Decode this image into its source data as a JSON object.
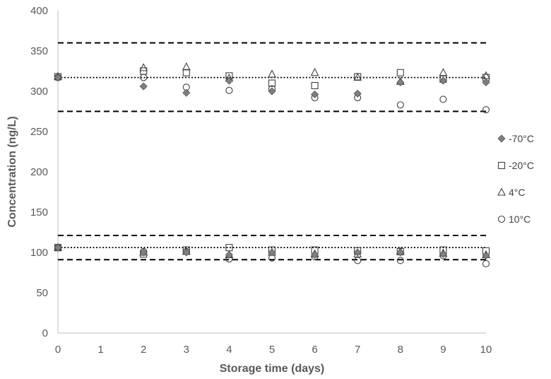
{
  "chart_data": {
    "type": "scatter",
    "xlabel": "Storage time (days)",
    "ylabel": "Concentration (ng/L)",
    "xlim": [
      0,
      10
    ],
    "ylim": [
      0,
      400
    ],
    "x_ticks": [
      0,
      1,
      2,
      3,
      4,
      5,
      6,
      7,
      8,
      9,
      10
    ],
    "y_ticks": [
      0,
      50,
      100,
      150,
      200,
      250,
      300,
      350,
      400
    ],
    "grid": false,
    "legend_position": "right",
    "series": [
      {
        "name": "-70°C",
        "marker": "diamond",
        "color": "#7f7f7f",
        "points": [
          [
            0,
            317
          ],
          [
            2,
            306
          ],
          [
            3,
            298
          ],
          [
            4,
            313
          ],
          [
            5,
            300
          ],
          [
            6,
            296
          ],
          [
            7,
            297
          ],
          [
            8,
            311
          ],
          [
            9,
            313
          ],
          [
            10,
            311
          ],
          [
            0,
            106
          ],
          [
            2,
            100
          ],
          [
            3,
            100
          ],
          [
            4,
            97
          ],
          [
            5,
            100
          ],
          [
            6,
            97
          ],
          [
            7,
            100
          ],
          [
            8,
            100
          ],
          [
            9,
            98
          ],
          [
            10,
            96
          ]
        ]
      },
      {
        "name": "-20°C",
        "marker": "square",
        "color": "#404040",
        "points": [
          [
            0,
            318
          ],
          [
            2,
            325
          ],
          [
            3,
            323
          ],
          [
            4,
            319
          ],
          [
            5,
            310
          ],
          [
            6,
            307
          ],
          [
            7,
            318
          ],
          [
            8,
            323
          ],
          [
            9,
            315
          ],
          [
            10,
            317
          ],
          [
            0,
            106
          ],
          [
            2,
            98
          ],
          [
            3,
            103
          ],
          [
            4,
            106
          ],
          [
            5,
            103
          ],
          [
            6,
            103
          ],
          [
            7,
            102
          ],
          [
            8,
            101
          ],
          [
            9,
            103
          ],
          [
            10,
            102
          ]
        ]
      },
      {
        "name": "4°C",
        "marker": "triangle",
        "color": "#404040",
        "points": [
          [
            0,
            318
          ],
          [
            2,
            329
          ],
          [
            3,
            330
          ],
          [
            4,
            316
          ],
          [
            5,
            321
          ],
          [
            6,
            323
          ],
          [
            7,
            317
          ],
          [
            8,
            312
          ],
          [
            9,
            323
          ],
          [
            10,
            319
          ],
          [
            0,
            106
          ],
          [
            2,
            100
          ],
          [
            3,
            101
          ],
          [
            4,
            97
          ],
          [
            5,
            100
          ],
          [
            6,
            98
          ],
          [
            7,
            98
          ],
          [
            8,
            101
          ],
          [
            9,
            99
          ],
          [
            10,
            97
          ]
        ]
      },
      {
        "name": "10°C",
        "marker": "circle",
        "color": "#404040",
        "points": [
          [
            0,
            317
          ],
          [
            2,
            317
          ],
          [
            3,
            305
          ],
          [
            4,
            301
          ],
          [
            5,
            303
          ],
          [
            6,
            292
          ],
          [
            7,
            292
          ],
          [
            8,
            283
          ],
          [
            9,
            290
          ],
          [
            10,
            277
          ],
          [
            0,
            106
          ],
          [
            2,
            101
          ],
          [
            3,
            101
          ],
          [
            4,
            92
          ],
          [
            5,
            93
          ],
          [
            6,
            95
          ],
          [
            7,
            90
          ],
          [
            8,
            90
          ],
          [
            9,
            96
          ],
          [
            10,
            86
          ]
        ]
      }
    ],
    "reference_lines": [
      {
        "y": 360,
        "style": "dashed"
      },
      {
        "y": 317,
        "style": "dotted"
      },
      {
        "y": 275,
        "style": "dashed"
      },
      {
        "y": 121,
        "style": "dashed"
      },
      {
        "y": 106,
        "style": "dotted"
      },
      {
        "y": 91,
        "style": "dashed"
      }
    ]
  }
}
